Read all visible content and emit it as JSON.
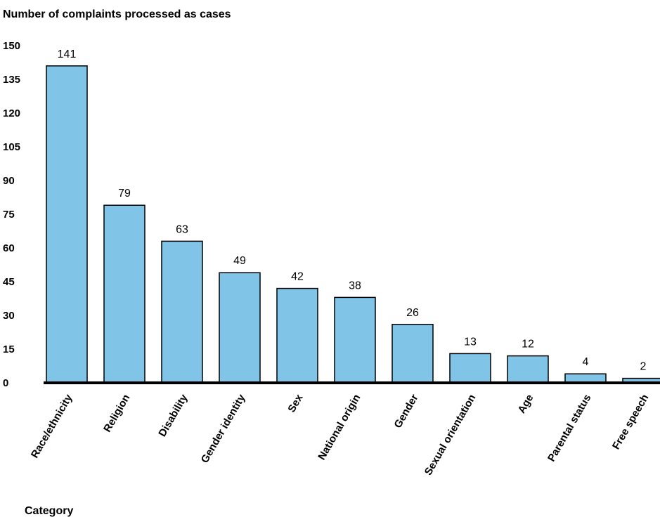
{
  "chart_data": {
    "type": "bar",
    "ylabel": "Number of complaints processed as cases",
    "xlabel": "Category",
    "categories": [
      "Race/ethnicity",
      "Religion",
      "Disability",
      "Gender identity",
      "Sex",
      "National origin",
      "Gender",
      "Sexual  orientation",
      "Age",
      "Parental status",
      "Free speech"
    ],
    "values": [
      141,
      79,
      63,
      49,
      42,
      38,
      26,
      13,
      12,
      4,
      2
    ],
    "data_labels": [
      "141",
      "79",
      "63",
      "49",
      "42",
      "38",
      "26",
      "13",
      "12",
      "4",
      "2"
    ],
    "yticks": [
      "0",
      "15",
      "30",
      "45",
      "60",
      "75",
      "90",
      "105",
      "120",
      "135",
      "150"
    ],
    "ylim": [
      0,
      150
    ],
    "grid": false,
    "bar_color": "#80C4E8"
  }
}
